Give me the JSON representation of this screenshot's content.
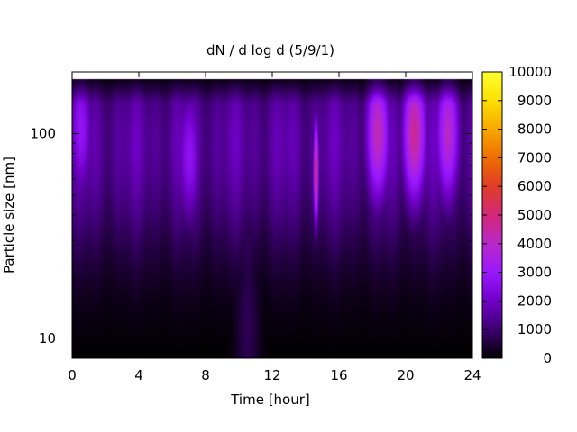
{
  "chart_data": {
    "type": "heatmap",
    "title": "dN / d log d (5/9/1)",
    "xlabel": "Time [hour]",
    "ylabel": "Particle size [nm]",
    "xlim": [
      0,
      24
    ],
    "ylim": [
      8,
      200
    ],
    "y_scale": "log",
    "x_ticks": [
      0,
      4,
      8,
      12,
      16,
      20,
      24
    ],
    "y_ticks": [
      10,
      100
    ],
    "colorbar": {
      "min": 0,
      "max": 10000,
      "ticks": [
        0,
        1000,
        2000,
        3000,
        4000,
        5000,
        6000,
        7000,
        8000,
        9000,
        10000
      ],
      "colormap": [
        "#000000",
        "#3c0070",
        "#7000c8",
        "#9a18ff",
        "#b828c8",
        "#d22878",
        "#e03c28",
        "#ee6e00",
        "#f7a800",
        "#fce000",
        "#ffff30"
      ]
    },
    "background_level": 1800,
    "features": [
      {
        "time": 0.5,
        "size_nm": 120,
        "value": 2900
      },
      {
        "time": 7.0,
        "size_nm": 70,
        "value": 2800
      },
      {
        "time": 10.5,
        "size_nm": 12,
        "value": 3000
      },
      {
        "time": 14.6,
        "size_nm": 60,
        "value": 5600
      },
      {
        "time": 18.3,
        "size_nm": 110,
        "value": 4300
      },
      {
        "time": 20.5,
        "size_nm": 110,
        "value": 4700
      },
      {
        "time": 22.5,
        "size_nm": 110,
        "value": 4000
      }
    ]
  }
}
